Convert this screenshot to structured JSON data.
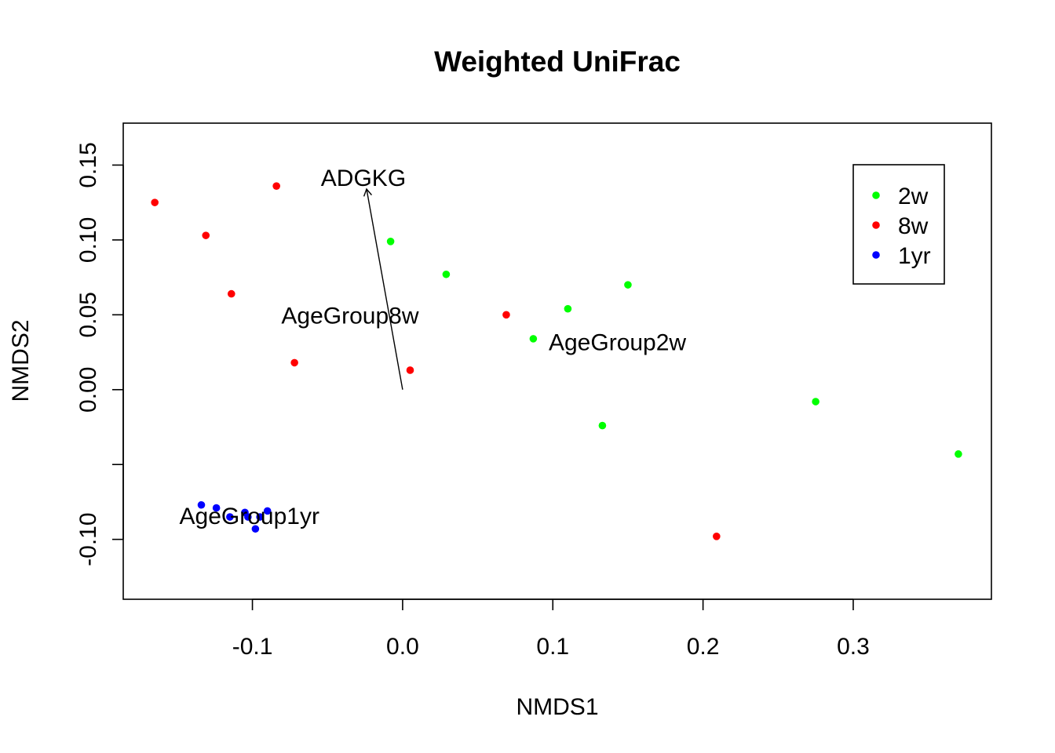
{
  "chart_data": {
    "type": "scatter",
    "title": "Weighted UniFrac",
    "xlabel": "NMDS1",
    "ylabel": "NMDS2",
    "xlim": [
      -0.186,
      0.392
    ],
    "ylim": [
      -0.14,
      0.178
    ],
    "x_ticks": [
      {
        "value": -0.1,
        "label": "-0.1"
      },
      {
        "value": 0.0,
        "label": "0.0"
      },
      {
        "value": 0.1,
        "label": "0.1"
      },
      {
        "value": 0.2,
        "label": "0.2"
      },
      {
        "value": 0.3,
        "label": "0.3"
      }
    ],
    "y_ticks": [
      {
        "value": 0.15,
        "label": "0.15"
      },
      {
        "value": 0.1,
        "label": "0.10"
      },
      {
        "value": 0.05,
        "label": "0.05"
      },
      {
        "value": 0.0,
        "label": "0.00"
      },
      {
        "value": -0.05,
        "label": ""
      },
      {
        "value": -0.1,
        "label": "-0.10"
      }
    ],
    "legend": {
      "position": "top-right",
      "entries": [
        "2w",
        "8w",
        "1yr"
      ]
    },
    "series": [
      {
        "name": "2w",
        "color": "#00ff00",
        "points": [
          {
            "x": -0.008,
            "y": 0.099
          },
          {
            "x": 0.029,
            "y": 0.077
          },
          {
            "x": 0.11,
            "y": 0.054
          },
          {
            "x": 0.15,
            "y": 0.07
          },
          {
            "x": 0.087,
            "y": 0.034
          },
          {
            "x": 0.133,
            "y": -0.024
          },
          {
            "x": 0.275,
            "y": -0.008
          },
          {
            "x": 0.37,
            "y": -0.043
          }
        ]
      },
      {
        "name": "8w",
        "color": "#ff0000",
        "points": [
          {
            "x": -0.165,
            "y": 0.125
          },
          {
            "x": -0.131,
            "y": 0.103
          },
          {
            "x": -0.084,
            "y": 0.136
          },
          {
            "x": -0.114,
            "y": 0.064
          },
          {
            "x": -0.072,
            "y": 0.018
          },
          {
            "x": 0.069,
            "y": 0.05
          },
          {
            "x": 0.005,
            "y": 0.013
          },
          {
            "x": 0.209,
            "y": -0.098
          }
        ]
      },
      {
        "name": "1yr",
        "color": "#0000ff",
        "points": [
          {
            "x": -0.134,
            "y": -0.077
          },
          {
            "x": -0.124,
            "y": -0.079
          },
          {
            "x": -0.115,
            "y": -0.085
          },
          {
            "x": -0.105,
            "y": -0.082
          },
          {
            "x": -0.103,
            "y": -0.085
          },
          {
            "x": -0.098,
            "y": -0.093
          },
          {
            "x": -0.095,
            "y": -0.085
          },
          {
            "x": -0.09,
            "y": -0.081
          }
        ]
      }
    ],
    "vector": {
      "label": "ADGKG",
      "from": {
        "x": 0.0,
        "y": 0.0
      },
      "to": {
        "x": -0.024,
        "y": 0.134
      }
    },
    "centroid_labels": [
      {
        "label": "AgeGroup8w",
        "x": -0.035,
        "y": 0.05
      },
      {
        "label": "AgeGroup2w",
        "x": 0.143,
        "y": 0.032
      },
      {
        "label": "AgeGroup1yr",
        "x": -0.102,
        "y": -0.084
      }
    ]
  }
}
